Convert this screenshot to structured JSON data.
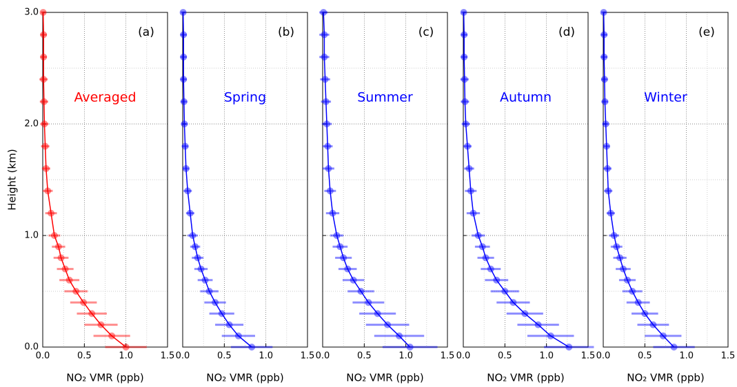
{
  "chart_data": [
    {
      "type": "line",
      "panel_label": "(a)",
      "xlabel": "NO₂ VMR (ppb)",
      "ylabel": "Height (km)",
      "y": [
        0,
        0.1,
        0.2,
        0.3,
        0.4,
        0.5,
        0.6,
        0.7,
        0.8,
        0.9,
        1.0,
        1.2,
        1.4,
        1.6,
        1.8,
        2.0,
        2.2,
        2.4,
        2.6,
        2.8,
        3.0
      ],
      "series": [
        {
          "name": "Averaged",
          "color": "#ff0000",
          "values": [
            1.0,
            0.83,
            0.7,
            0.59,
            0.49,
            0.4,
            0.32,
            0.27,
            0.22,
            0.19,
            0.14,
            0.1,
            0.06,
            0.04,
            0.03,
            0.02,
            0.015,
            0.01,
            0.01,
            0.01,
            0.005
          ],
          "errors": [
            0.25,
            0.22,
            0.2,
            0.18,
            0.16,
            0.14,
            0.12,
            0.1,
            0.09,
            0.08,
            0.07,
            0.07,
            0.06,
            0.05,
            0.05,
            0.05,
            0.05,
            0.05,
            0.04,
            0.04,
            0.03
          ]
        }
      ],
      "xlim": [
        0,
        1.5
      ],
      "ylim": [
        0,
        3
      ],
      "xticks": [
        {
          "value": 0,
          "label": "0.0"
        },
        {
          "value": 0.5,
          "label": "0.5"
        },
        {
          "value": 1,
          "label": "1.0"
        },
        {
          "value": 1.5,
          "label": "1.5"
        }
      ],
      "yticks": [
        {
          "value": 0,
          "label": "0.0"
        },
        {
          "value": 1,
          "label": "1.0"
        },
        {
          "value": 2,
          "label": "2.0"
        },
        {
          "value": 3,
          "label": "3.0"
        }
      ],
      "minor_xticks": [
        0.25,
        0.75,
        1.25
      ],
      "minor_yticks": [
        0.5,
        1.5,
        2.5
      ],
      "grid": true
    },
    {
      "type": "line",
      "panel_label": "(b)",
      "xlabel": "NO₂ VMR (ppb)",
      "y": [
        0,
        0.1,
        0.2,
        0.3,
        0.4,
        0.5,
        0.6,
        0.7,
        0.8,
        0.9,
        1.0,
        1.2,
        1.4,
        1.6,
        1.8,
        2.0,
        2.2,
        2.4,
        2.6,
        2.8,
        3.0
      ],
      "series": [
        {
          "name": "Spring",
          "color": "#0000ff",
          "values": [
            0.83,
            0.67,
            0.56,
            0.47,
            0.39,
            0.32,
            0.27,
            0.22,
            0.18,
            0.15,
            0.12,
            0.09,
            0.06,
            0.04,
            0.03,
            0.02,
            0.015,
            0.01,
            0.01,
            0.01,
            0.005
          ],
          "errors": [
            0.25,
            0.2,
            0.17,
            0.15,
            0.13,
            0.11,
            0.09,
            0.08,
            0.07,
            0.06,
            0.06,
            0.05,
            0.05,
            0.04,
            0.04,
            0.04,
            0.04,
            0.04,
            0.04,
            0.04,
            0.03
          ]
        }
      ],
      "xlim": [
        0,
        1.5
      ],
      "ylim": [
        0,
        3
      ],
      "xticks": [
        {
          "value": 0,
          "label": "0.0"
        },
        {
          "value": 0.5,
          "label": "0.5"
        },
        {
          "value": 1,
          "label": "1.0"
        },
        {
          "value": 1.5,
          "label": "1.5"
        }
      ],
      "yticks": [
        0,
        1,
        2,
        3
      ],
      "minor_xticks": [
        0.25,
        0.75,
        1.25
      ],
      "minor_yticks": [
        0.5,
        1.5,
        2.5
      ],
      "grid": true
    },
    {
      "type": "line",
      "panel_label": "(c)",
      "xlabel": "NO₂ VMR (ppb)",
      "y": [
        0,
        0.1,
        0.2,
        0.3,
        0.4,
        0.5,
        0.6,
        0.7,
        0.8,
        0.9,
        1.0,
        1.2,
        1.4,
        1.6,
        1.8,
        2.0,
        2.2,
        2.4,
        2.6,
        2.8,
        3.0
      ],
      "series": [
        {
          "name": "Summer",
          "color": "#0000ff",
          "values": [
            1.05,
            0.92,
            0.78,
            0.66,
            0.55,
            0.46,
            0.37,
            0.3,
            0.25,
            0.21,
            0.17,
            0.12,
            0.09,
            0.07,
            0.06,
            0.05,
            0.04,
            0.03,
            0.02,
            0.02,
            0.01
          ],
          "errors": [
            0.33,
            0.3,
            0.26,
            0.22,
            0.19,
            0.16,
            0.13,
            0.11,
            0.1,
            0.09,
            0.08,
            0.08,
            0.07,
            0.07,
            0.06,
            0.06,
            0.06,
            0.06,
            0.06,
            0.06,
            0.05
          ]
        }
      ],
      "xlim": [
        0,
        1.5
      ],
      "ylim": [
        0,
        3
      ],
      "xticks": [
        {
          "value": 0,
          "label": "0.0"
        },
        {
          "value": 0.5,
          "label": "0.5"
        },
        {
          "value": 1,
          "label": "1.0"
        },
        {
          "value": 1.5,
          "label": "1.5"
        }
      ],
      "yticks": [
        0,
        1,
        2,
        3
      ],
      "minor_xticks": [
        0.25,
        0.75,
        1.25
      ],
      "minor_yticks": [
        0.5,
        1.5,
        2.5
      ],
      "grid": true
    },
    {
      "type": "line",
      "panel_label": "(d)",
      "xlabel": "NO₂ VMR (ppb)",
      "y": [
        0,
        0.1,
        0.2,
        0.3,
        0.4,
        0.5,
        0.6,
        0.7,
        0.8,
        0.9,
        1.0,
        1.2,
        1.4,
        1.6,
        1.8,
        2.0,
        2.2,
        2.4,
        2.6,
        2.8,
        3.0
      ],
      "series": [
        {
          "name": "Autumn",
          "color": "#0000ff",
          "values": [
            1.27,
            1.05,
            0.9,
            0.74,
            0.6,
            0.5,
            0.4,
            0.33,
            0.27,
            0.23,
            0.18,
            0.12,
            0.09,
            0.07,
            0.05,
            0.03,
            0.02,
            0.015,
            0.01,
            0.01,
            0.005
          ],
          "errors": [
            0.3,
            0.28,
            0.25,
            0.22,
            0.2,
            0.17,
            0.14,
            0.12,
            0.1,
            0.09,
            0.08,
            0.08,
            0.07,
            0.06,
            0.05,
            0.05,
            0.05,
            0.05,
            0.04,
            0.04,
            0.03
          ]
        }
      ],
      "xlim": [
        0,
        1.5
      ],
      "ylim": [
        0,
        3
      ],
      "xticks": [
        {
          "value": 0,
          "label": "0.0"
        },
        {
          "value": 0.5,
          "label": "0.5"
        },
        {
          "value": 1,
          "label": "1.0"
        },
        {
          "value": 1.5,
          "label": "1.5"
        }
      ],
      "yticks": [
        0,
        1,
        2,
        3
      ],
      "minor_xticks": [
        0.25,
        0.75,
        1.25
      ],
      "minor_yticks": [
        0.5,
        1.5,
        2.5
      ],
      "grid": true
    },
    {
      "type": "line",
      "panel_label": "(e)",
      "xlabel": "NO₂ VMR (ppb)",
      "y": [
        0,
        0.1,
        0.2,
        0.3,
        0.4,
        0.5,
        0.6,
        0.7,
        0.8,
        0.9,
        1.0,
        1.2,
        1.4,
        1.6,
        1.8,
        2.0,
        2.2,
        2.4,
        2.6,
        2.8,
        3.0
      ],
      "series": [
        {
          "name": "Winter",
          "color": "#0000ff",
          "values": [
            0.85,
            0.72,
            0.6,
            0.5,
            0.42,
            0.35,
            0.29,
            0.24,
            0.2,
            0.16,
            0.13,
            0.09,
            0.06,
            0.05,
            0.04,
            0.03,
            0.02,
            0.015,
            0.01,
            0.01,
            0.005
          ],
          "errors": [
            0.25,
            0.22,
            0.19,
            0.16,
            0.14,
            0.12,
            0.1,
            0.09,
            0.08,
            0.07,
            0.06,
            0.05,
            0.05,
            0.05,
            0.04,
            0.04,
            0.04,
            0.04,
            0.04,
            0.04,
            0.03
          ]
        }
      ],
      "xlim": [
        0,
        1.5
      ],
      "ylim": [
        0,
        3
      ],
      "xticks": [
        {
          "value": 0,
          "label": "0.0"
        },
        {
          "value": 0.5,
          "label": "0.5"
        },
        {
          "value": 1,
          "label": "1.0"
        },
        {
          "value": 1.5,
          "label": "1.5"
        }
      ],
      "yticks": [
        0,
        1,
        2,
        3
      ],
      "minor_xticks": [
        0.25,
        0.75,
        1.25
      ],
      "minor_yticks": [
        0.5,
        1.5,
        2.5
      ],
      "grid": true
    }
  ]
}
